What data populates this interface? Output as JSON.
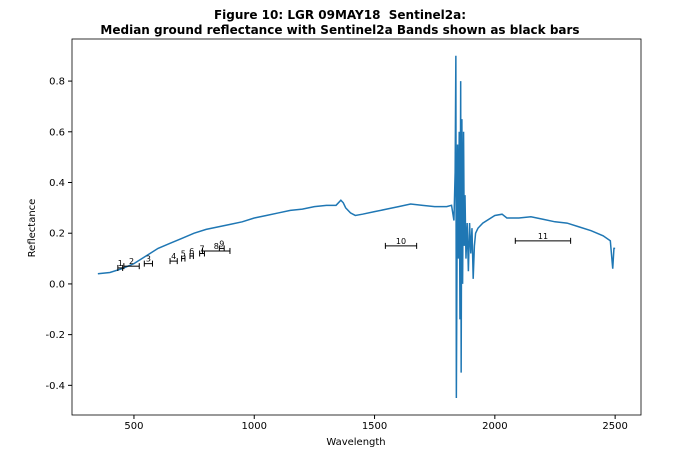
{
  "chart_data": {
    "type": "line",
    "title": [
      "Figure 10: LGR 09MAY18  Sentinel2a:",
      "Median ground reflectance with Sentinel2a Bands shown as black bars"
    ],
    "x_label": "Wavelength",
    "y_label": "Reflectance",
    "xlim": [
      242.5,
      2607.5
    ],
    "ylim": [
      -0.517,
      0.966
    ],
    "xticks": [
      500,
      1000,
      1500,
      2000,
      2500
    ],
    "yticks": [
      -0.4,
      -0.2,
      {
        "value": 0,
        "label": "0.0"
      },
      0.2,
      0.4,
      0.6,
      0.8
    ],
    "series": [
      {
        "color": "#1f77b4",
        "x": [
          350,
          400,
          450,
          500,
          550,
          600,
          650,
          700,
          750,
          800,
          850,
          900,
          950,
          1000,
          1050,
          1100,
          1150,
          1200,
          1250,
          1300,
          1340,
          1360,
          1370,
          1380,
          1400,
          1420,
          1450,
          1500,
          1550,
          1600,
          1650,
          1700,
          1750,
          1800,
          1820,
          1830,
          1835,
          1838,
          1840,
          1845,
          1848,
          1852,
          1855,
          1858,
          1860,
          1863,
          1866,
          1870,
          1873,
          1876,
          1880,
          1885,
          1890,
          1895,
          1900,
          1905,
          1910,
          1915,
          1920,
          1930,
          1950,
          2000,
          2030,
          2050,
          2100,
          2150,
          2200,
          2250,
          2300,
          2350,
          2400,
          2450,
          2480,
          2490,
          2495,
          2500
        ],
        "values": [
          0.04,
          0.045,
          0.06,
          0.08,
          0.11,
          0.14,
          0.16,
          0.18,
          0.2,
          0.215,
          0.225,
          0.235,
          0.245,
          0.26,
          0.27,
          0.28,
          0.29,
          0.295,
          0.305,
          0.31,
          0.31,
          0.33,
          0.32,
          0.3,
          0.28,
          0.27,
          0.275,
          0.285,
          0.295,
          0.305,
          0.315,
          0.31,
          0.305,
          0.305,
          0.31,
          0.25,
          0.44,
          0.9,
          -0.45,
          0.55,
          0.1,
          0.6,
          -0.14,
          0.8,
          -0.35,
          0.65,
          0.0,
          0.6,
          0.15,
          0.35,
          0.1,
          0.24,
          0.05,
          0.24,
          0.12,
          0.22,
          0.02,
          0.15,
          0.2,
          0.22,
          0.24,
          0.27,
          0.275,
          0.26,
          0.26,
          0.265,
          0.255,
          0.245,
          0.24,
          0.225,
          0.21,
          0.19,
          0.17,
          0.06,
          0.14,
          0.14
        ]
      }
    ],
    "bands": {
      "color": "#000000",
      "names": [
        "1",
        "2",
        "3",
        "4",
        "5",
        "6",
        "7",
        "8",
        "9",
        "10",
        "11"
      ],
      "x": [
        443,
        490,
        560,
        665,
        705,
        740,
        783,
        842,
        865,
        1610,
        2200
      ],
      "xerr": [
        10,
        32,
        17,
        15,
        7,
        7,
        10,
        57,
        10,
        65,
        115
      ],
      "values": [
        0.063,
        0.07,
        0.08,
        0.09,
        0.1,
        0.11,
        0.12,
        0.13,
        0.14,
        0.15,
        0.17
      ]
    }
  }
}
